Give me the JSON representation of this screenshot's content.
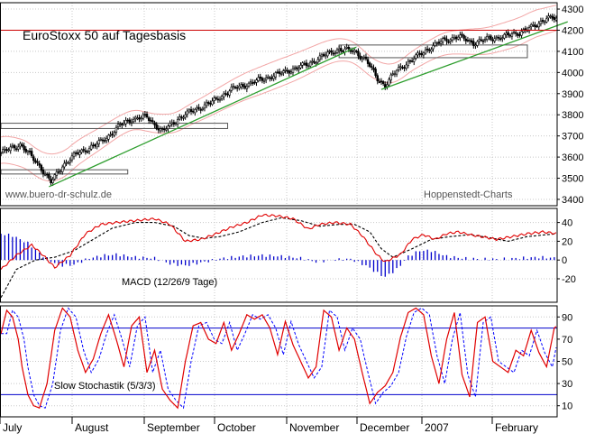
{
  "colors": {
    "background": "#ffffff",
    "frame": "#000000",
    "grid": "#c8c8c8",
    "candle_up": "#ffffff",
    "candle_down": "#000000",
    "bollinger": "#f2a6a6",
    "trendline": "#2e9e2e",
    "resistance_line": "#cc0000",
    "macd_line": "#e00000",
    "signal_line": "#000000",
    "histogram": "#0000cc",
    "stoch_k": "#e00000",
    "stoch_d": "#0000ff",
    "stoch_bounds": "#0000cc",
    "box_outline": "#555555"
  },
  "chart_data": [
    {
      "type": "candlestick",
      "title": "EuroStoxx 50 auf Tagesbasis",
      "source_left": "www.buero-dr-schulz.de",
      "source_right": "Hoppenstedt-Charts",
      "y_ticks": [
        3400,
        3500,
        3600,
        3700,
        3800,
        3900,
        4000,
        4100,
        4200,
        4300
      ],
      "ylim": [
        3370,
        4330
      ],
      "grid": true,
      "x_labels": [
        "July",
        "August",
        "September",
        "October",
        "November",
        "December",
        "2007",
        "February"
      ],
      "resistance": 4200,
      "close_anchors": [
        [
          0,
          3620
        ],
        [
          10,
          3660
        ],
        [
          20,
          3560
        ],
        [
          26,
          3480
        ],
        [
          32,
          3560
        ],
        [
          40,
          3620
        ],
        [
          50,
          3660
        ],
        [
          56,
          3700
        ],
        [
          62,
          3750
        ],
        [
          68,
          3780
        ],
        [
          76,
          3790
        ],
        [
          84,
          3720
        ],
        [
          92,
          3780
        ],
        [
          100,
          3820
        ],
        [
          110,
          3860
        ],
        [
          120,
          3920
        ],
        [
          130,
          3950
        ],
        [
          140,
          3980
        ],
        [
          150,
          4010
        ],
        [
          160,
          4040
        ],
        [
          168,
          4080
        ],
        [
          176,
          4110
        ],
        [
          184,
          4100
        ],
        [
          190,
          4060
        ],
        [
          196,
          3970
        ],
        [
          200,
          3940
        ],
        [
          206,
          4010
        ],
        [
          214,
          4060
        ],
        [
          222,
          4110
        ],
        [
          230,
          4150
        ],
        [
          238,
          4170
        ],
        [
          246,
          4140
        ],
        [
          254,
          4160
        ],
        [
          262,
          4170
        ],
        [
          270,
          4190
        ],
        [
          278,
          4220
        ],
        [
          284,
          4260
        ],
        [
          290,
          4250
        ]
      ],
      "trendlines": [
        {
          "from": [
            25,
            3460
          ],
          "to": [
            185,
            4120
          ]
        },
        {
          "from": [
            198,
            3920
          ],
          "to": [
            295,
            4240
          ]
        }
      ],
      "boxes": [
        {
          "x": [
            0,
            118
          ],
          "y": [
            3735,
            3760
          ]
        },
        {
          "x": [
            0,
            66
          ],
          "y": [
            3520,
            3540
          ]
        },
        {
          "x": [
            176,
            274
          ],
          "y": [
            4070,
            4130
          ]
        }
      ]
    },
    {
      "type": "line",
      "label": "MACD (12/26/9 Tage)",
      "y_ticks": [
        40,
        20,
        0,
        -20
      ],
      "ylim": [
        -45,
        55
      ],
      "grid": true,
      "macd_anchors": [
        [
          0,
          -10
        ],
        [
          8,
          5
        ],
        [
          16,
          16
        ],
        [
          22,
          5
        ],
        [
          28,
          -8
        ],
        [
          36,
          5
        ],
        [
          44,
          28
        ],
        [
          52,
          38
        ],
        [
          60,
          40
        ],
        [
          70,
          42
        ],
        [
          80,
          44
        ],
        [
          88,
          38
        ],
        [
          96,
          20
        ],
        [
          104,
          22
        ],
        [
          112,
          28
        ],
        [
          120,
          35
        ],
        [
          128,
          40
        ],
        [
          136,
          48
        ],
        [
          144,
          47
        ],
        [
          152,
          44
        ],
        [
          160,
          33
        ],
        [
          166,
          38
        ],
        [
          174,
          40
        ],
        [
          182,
          38
        ],
        [
          188,
          26
        ],
        [
          196,
          5
        ],
        [
          200,
          -2
        ],
        [
          208,
          6
        ],
        [
          214,
          22
        ],
        [
          220,
          27
        ],
        [
          226,
          22
        ],
        [
          232,
          28
        ],
        [
          238,
          30
        ],
        [
          244,
          27
        ],
        [
          250,
          25
        ],
        [
          258,
          22
        ],
        [
          266,
          25
        ],
        [
          274,
          28
        ],
        [
          282,
          30
        ],
        [
          290,
          28
        ]
      ],
      "signal_anchors": [
        [
          0,
          -40
        ],
        [
          8,
          -10
        ],
        [
          18,
          0
        ],
        [
          28,
          3
        ],
        [
          38,
          10
        ],
        [
          48,
          22
        ],
        [
          58,
          34
        ],
        [
          70,
          40
        ],
        [
          80,
          40
        ],
        [
          90,
          36
        ],
        [
          98,
          26
        ],
        [
          106,
          23
        ],
        [
          114,
          25
        ],
        [
          124,
          30
        ],
        [
          136,
          40
        ],
        [
          146,
          45
        ],
        [
          156,
          42
        ],
        [
          166,
          36
        ],
        [
          176,
          38
        ],
        [
          184,
          38
        ],
        [
          192,
          30
        ],
        [
          198,
          12
        ],
        [
          204,
          3
        ],
        [
          214,
          12
        ],
        [
          224,
          22
        ],
        [
          234,
          25
        ],
        [
          244,
          27
        ],
        [
          254,
          24
        ],
        [
          264,
          20
        ],
        [
          274,
          25
        ],
        [
          284,
          27
        ],
        [
          290,
          28
        ]
      ],
      "histogram_anchors": [
        [
          0,
          28
        ],
        [
          6,
          26
        ],
        [
          14,
          18
        ],
        [
          22,
          4
        ],
        [
          30,
          -6
        ],
        [
          38,
          -5
        ],
        [
          46,
          2
        ],
        [
          54,
          5
        ],
        [
          60,
          6
        ],
        [
          70,
          3
        ],
        [
          80,
          2
        ],
        [
          88,
          -4
        ],
        [
          96,
          -6
        ],
        [
          106,
          -2
        ],
        [
          116,
          2
        ],
        [
          126,
          4
        ],
        [
          136,
          5
        ],
        [
          146,
          4
        ],
        [
          156,
          2
        ],
        [
          164,
          -2
        ],
        [
          172,
          0
        ],
        [
          182,
          1
        ],
        [
          190,
          -6
        ],
        [
          196,
          -14
        ],
        [
          200,
          -18
        ],
        [
          206,
          -10
        ],
        [
          212,
          4
        ],
        [
          218,
          10
        ],
        [
          224,
          10
        ],
        [
          232,
          4
        ],
        [
          240,
          2
        ],
        [
          250,
          1
        ],
        [
          260,
          1
        ],
        [
          270,
          2
        ],
        [
          280,
          3
        ],
        [
          290,
          2
        ]
      ]
    },
    {
      "type": "line",
      "label": "Slow Stochastik (5/3/3)",
      "y_ticks": [
        90,
        70,
        50,
        30,
        10
      ],
      "ylim": [
        0,
        100
      ],
      "upper_bound": 80,
      "lower_bound": 20,
      "grid": true,
      "k_anchors": [
        [
          0,
          75
        ],
        [
          3,
          96
        ],
        [
          6,
          90
        ],
        [
          9,
          70
        ],
        [
          11,
          45
        ],
        [
          14,
          20
        ],
        [
          17,
          10
        ],
        [
          20,
          8
        ],
        [
          24,
          30
        ],
        [
          28,
          78
        ],
        [
          32,
          98
        ],
        [
          36,
          90
        ],
        [
          40,
          60
        ],
        [
          44,
          40
        ],
        [
          48,
          52
        ],
        [
          52,
          75
        ],
        [
          56,
          92
        ],
        [
          60,
          70
        ],
        [
          64,
          45
        ],
        [
          68,
          82
        ],
        [
          72,
          90
        ],
        [
          76,
          40
        ],
        [
          80,
          60
        ],
        [
          84,
          25
        ],
        [
          88,
          15
        ],
        [
          92,
          8
        ],
        [
          96,
          50
        ],
        [
          100,
          82
        ],
        [
          104,
          85
        ],
        [
          108,
          70
        ],
        [
          112,
          66
        ],
        [
          116,
          85
        ],
        [
          120,
          60
        ],
        [
          124,
          75
        ],
        [
          128,
          92
        ],
        [
          132,
          88
        ],
        [
          136,
          92
        ],
        [
          140,
          80
        ],
        [
          144,
          56
        ],
        [
          148,
          86
        ],
        [
          152,
          65
        ],
        [
          156,
          50
        ],
        [
          160,
          35
        ],
        [
          164,
          45
        ],
        [
          168,
          96
        ],
        [
          172,
          90
        ],
        [
          176,
          60
        ],
        [
          180,
          80
        ],
        [
          184,
          70
        ],
        [
          188,
          40
        ],
        [
          192,
          12
        ],
        [
          196,
          22
        ],
        [
          200,
          28
        ],
        [
          204,
          40
        ],
        [
          208,
          72
        ],
        [
          212,
          94
        ],
        [
          216,
          98
        ],
        [
          220,
          92
        ],
        [
          224,
          55
        ],
        [
          228,
          30
        ],
        [
          232,
          70
        ],
        [
          236,
          94
        ],
        [
          240,
          38
        ],
        [
          244,
          18
        ],
        [
          248,
          85
        ],
        [
          252,
          90
        ],
        [
          256,
          50
        ],
        [
          260,
          45
        ],
        [
          264,
          40
        ],
        [
          268,
          60
        ],
        [
          272,
          55
        ],
        [
          276,
          78
        ],
        [
          280,
          58
        ],
        [
          284,
          45
        ],
        [
          288,
          80
        ],
        [
          290,
          83
        ]
      ]
    }
  ]
}
